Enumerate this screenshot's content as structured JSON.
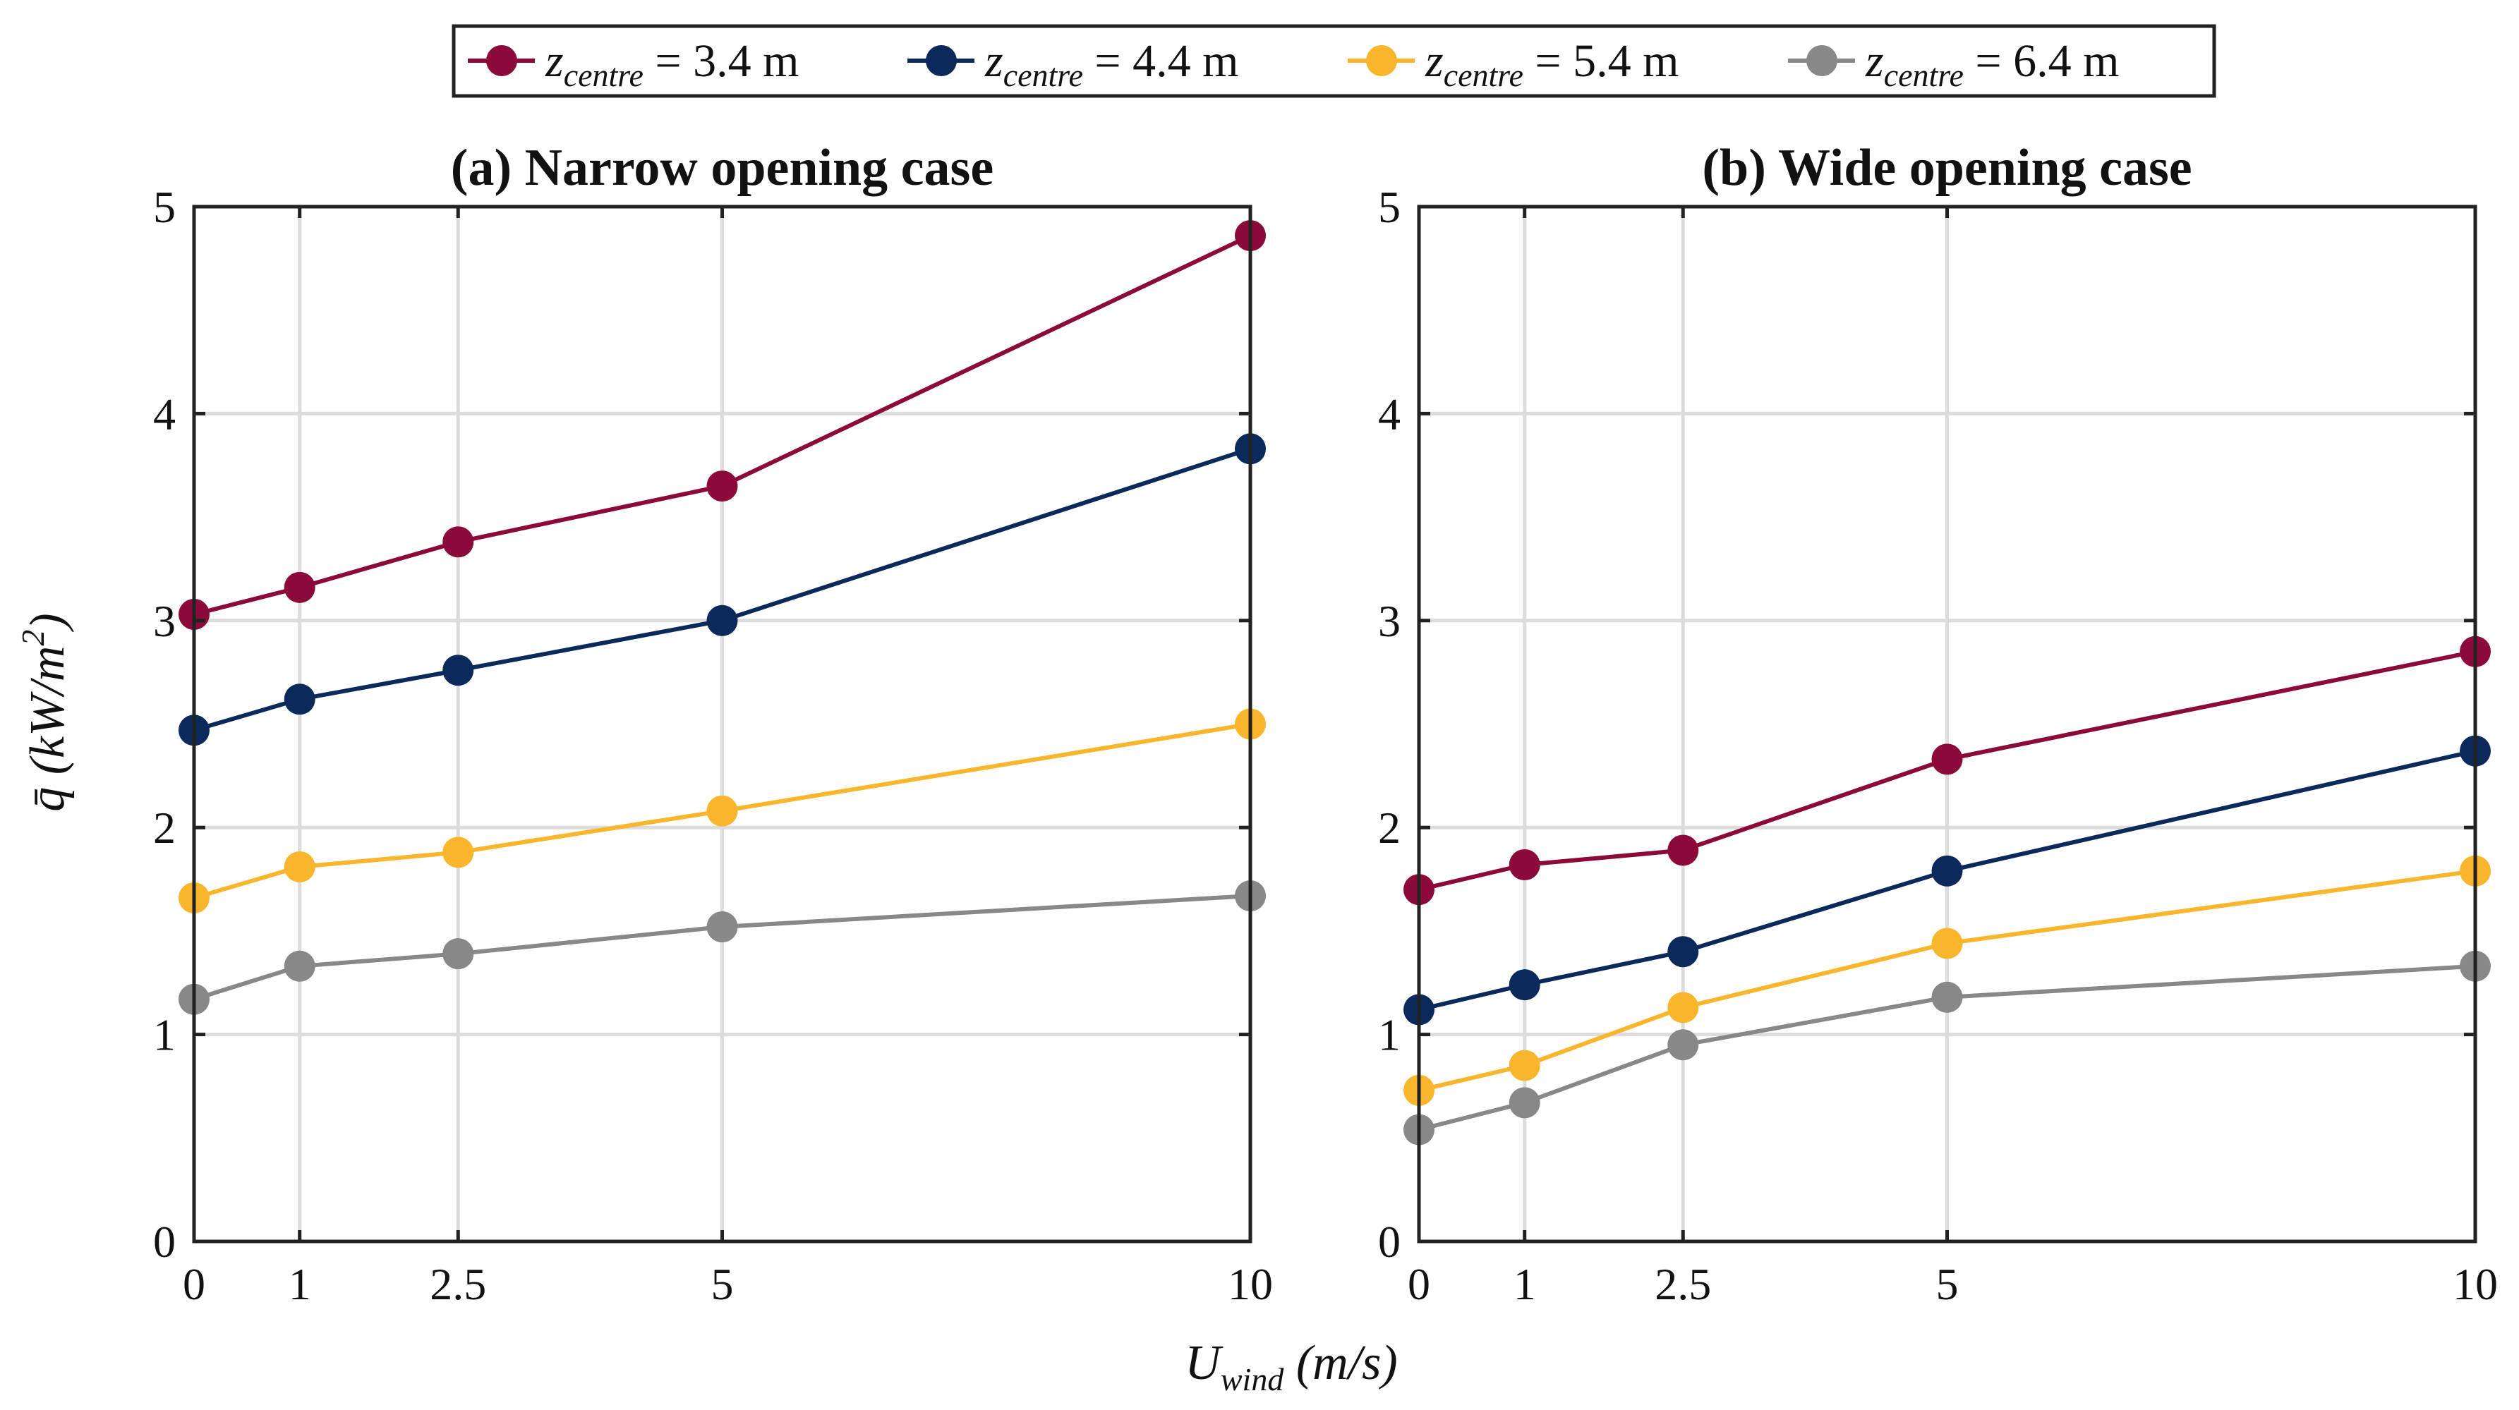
{
  "legend": {
    "entries": [
      {
        "var": "z",
        "sub": "centre",
        "rest": " = 3.4 m",
        "color": "#8B0A3A"
      },
      {
        "var": "z",
        "sub": "centre",
        "rest": " = 4.4 m",
        "color": "#0B2A5B"
      },
      {
        "var": "z",
        "sub": "centre",
        "rest": " = 5.4 m",
        "color": "#F9B62D"
      },
      {
        "var": "z",
        "sub": "centre",
        "rest": " = 6.4 m",
        "color": "#888888"
      }
    ]
  },
  "xlabel": {
    "var": "U",
    "sub": "wind",
    "rest": " (m/s)"
  },
  "ylabel": {
    "text": "q̄ (kW/m",
    "sup": "2",
    "close": ")"
  },
  "chart_data": [
    {
      "type": "line",
      "title": "(a) Narrow opening case",
      "x": [
        0,
        1,
        2.5,
        5,
        10
      ],
      "x_tick_labels": [
        "0",
        "1",
        "2.5",
        "5",
        "10"
      ],
      "ylim": [
        0,
        5
      ],
      "y_ticks": [
        0,
        1,
        2,
        3,
        4,
        5
      ],
      "grid": true,
      "series": [
        {
          "name": "z_centre = 3.4 m",
          "color": "#8B0A3A",
          "values": [
            3.03,
            3.16,
            3.38,
            3.65,
            4.86
          ]
        },
        {
          "name": "z_centre = 4.4 m",
          "color": "#0B2A5B",
          "values": [
            2.47,
            2.62,
            2.76,
            3.0,
            3.83
          ]
        },
        {
          "name": "z_centre = 5.4 m",
          "color": "#F9B62D",
          "values": [
            1.66,
            1.81,
            1.88,
            2.08,
            2.5
          ]
        },
        {
          "name": "z_centre = 6.4 m",
          "color": "#888888",
          "values": [
            1.17,
            1.33,
            1.39,
            1.52,
            1.67
          ]
        }
      ]
    },
    {
      "type": "line",
      "title": "(b) Wide opening case",
      "x": [
        0,
        1,
        2.5,
        5,
        10
      ],
      "x_tick_labels": [
        "0",
        "1",
        "2.5",
        "5",
        "10"
      ],
      "ylim": [
        0,
        5
      ],
      "y_ticks": [
        0,
        1,
        2,
        3,
        4,
        5
      ],
      "grid": true,
      "series": [
        {
          "name": "z_centre = 3.4 m",
          "color": "#8B0A3A",
          "values": [
            1.7,
            1.82,
            1.89,
            2.33,
            2.85
          ]
        },
        {
          "name": "z_centre = 4.4 m",
          "color": "#0B2A5B",
          "values": [
            1.12,
            1.24,
            1.4,
            1.79,
            2.37
          ]
        },
        {
          "name": "z_centre = 5.4 m",
          "color": "#F9B62D",
          "values": [
            0.73,
            0.85,
            1.13,
            1.44,
            1.79
          ]
        },
        {
          "name": "z_centre = 6.4 m",
          "color": "#888888",
          "values": [
            0.54,
            0.67,
            0.95,
            1.18,
            1.33
          ]
        }
      ]
    }
  ]
}
